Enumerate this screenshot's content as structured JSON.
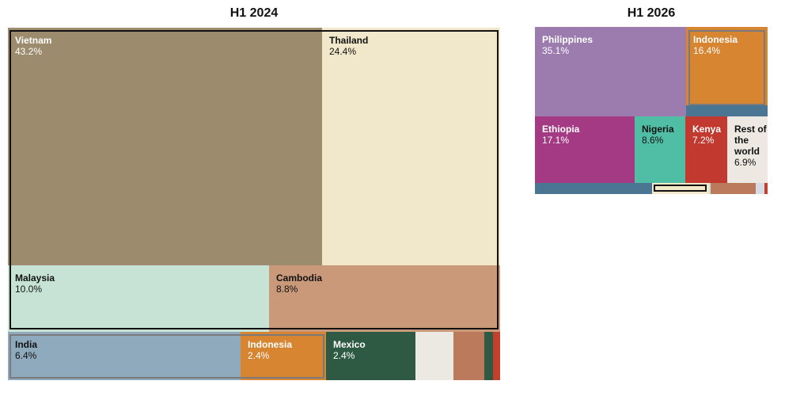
{
  "chart_data": [
    {
      "type": "treemap",
      "title": "H1 2024",
      "tiles": [
        {
          "name": "Vietnam",
          "value": "43.2%",
          "color": "#9c8b6c",
          "text_color": "#ffffff"
        },
        {
          "name": "Thailand",
          "value": "24.4%",
          "color": "#f1e7ca",
          "text_color": "#111111"
        },
        {
          "name": "Malaysia",
          "value": "10.0%",
          "color": "#c6e3d6",
          "text_color": "#111111"
        },
        {
          "name": "Cambodia",
          "value": "8.8%",
          "color": "#c9997a",
          "text_color": "#111111"
        },
        {
          "name": "India",
          "value": "6.4%",
          "color": "#8faabc",
          "text_color": "#111111"
        },
        {
          "name": "Indonesia",
          "value": "2.4%",
          "color": "#d78530",
          "text_color": "#ffffff"
        },
        {
          "name": "Mexico",
          "value": "2.4%",
          "color": "#2e5a43",
          "text_color": "#ffffff"
        },
        {
          "name": "",
          "value": "",
          "color": "#ece8e2"
        },
        {
          "name": "",
          "value": "",
          "color": "#bc7a5d"
        },
        {
          "name": "",
          "value": "",
          "color": "#2e5a43"
        },
        {
          "name": "",
          "value": "",
          "color": "#c1412d"
        }
      ]
    },
    {
      "type": "treemap",
      "title": "H1 2026",
      "tiles": [
        {
          "name": "Philippines",
          "value": "35.1%",
          "color": "#9c7bae",
          "text_color": "#ffffff"
        },
        {
          "name": "Indonesia",
          "value": "16.4%",
          "color": "#d78530",
          "text_color": "#ffffff"
        },
        {
          "name": "",
          "value": "",
          "color": "#4a7593"
        },
        {
          "name": "Ethiopia",
          "value": "17.1%",
          "color": "#a53a84",
          "text_color": "#ffffff"
        },
        {
          "name": "Nigeria",
          "value": "8.6%",
          "color": "#4fbea4",
          "text_color": "#111111"
        },
        {
          "name": "Kenya",
          "value": "7.2%",
          "color": "#c1392f",
          "text_color": "#ffffff"
        },
        {
          "name": "Rest of the world",
          "value": "6.9%",
          "color": "#ede9e2",
          "text_color": "#111111"
        },
        {
          "name": "",
          "value": "",
          "color": "#4a7593"
        },
        {
          "name": "",
          "value": "",
          "color": "#f1e7ca"
        },
        {
          "name": "",
          "value": "",
          "color": "#c6e3d6"
        },
        {
          "name": "",
          "value": "",
          "color": "#bc7a5d"
        },
        {
          "name": "",
          "value": "",
          "color": "#d6dce4"
        },
        {
          "name": "",
          "value": "",
          "color": "#c1412d"
        }
      ]
    }
  ]
}
